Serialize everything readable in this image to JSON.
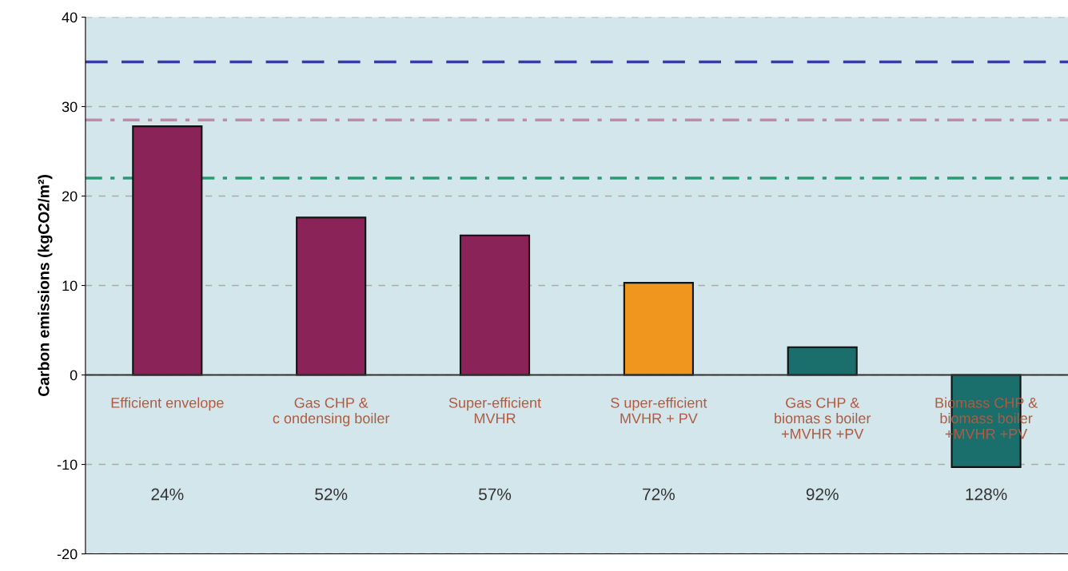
{
  "chart_data": {
    "type": "bar",
    "ylabel": "Carbon emissions (kgCO2/m²)",
    "categories": [
      "Efficient envelope",
      "Gas CHP &\nc ondensing boiler",
      "Super-efficient\nMVHR",
      "S uper-efficient\nMVHR + PV",
      "Gas CHP &\nbiomas s boiler\n+MVHR +PV",
      "Biomass CHP &\nbiomass boiler\n+MVHR +PV"
    ],
    "values": [
      27.8,
      17.6,
      15.6,
      10.3,
      3.1,
      -10.3
    ],
    "colors": [
      "#8a2458",
      "#8a2458",
      "#8a2458",
      "#f0961e",
      "#1a6e6c",
      "#1a6e6c"
    ],
    "ylim": [
      -20,
      40
    ],
    "yticks": [
      -20,
      -10,
      0,
      10,
      20,
      30,
      40
    ],
    "grid": "y",
    "tick_labels": "y",
    "ref_lines": [
      {
        "axis": "y",
        "value": 35,
        "color": "#3c3ca0",
        "line_style": "dashed"
      },
      {
        "axis": "y",
        "value": 28.5,
        "color": "#c08aa8",
        "line_style": "dashdot"
      },
      {
        "axis": "y",
        "value": 22,
        "color": "#2a9a70",
        "line_style": "dashdot"
      }
    ],
    "annotations": [
      "24%",
      "52%",
      "57%",
      "72%",
      "92%",
      "128%"
    ]
  }
}
